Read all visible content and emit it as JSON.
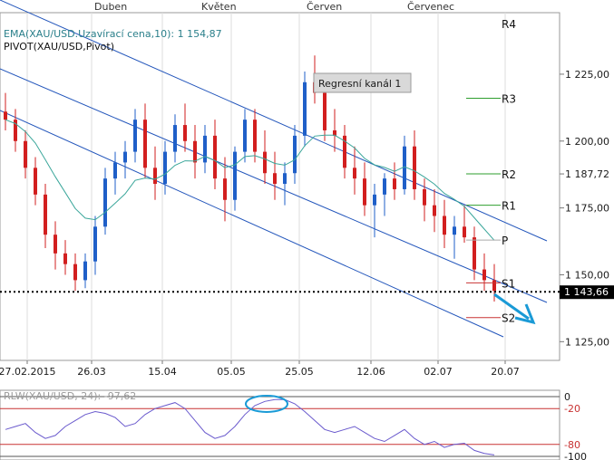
{
  "chart_data": [
    {
      "type": "candlestick",
      "instrument": "XAU/USD",
      "months": [
        "Duben",
        "Květen",
        "Červen",
        "Červenec"
      ],
      "x_ticks": [
        "27.02.2015",
        "26.03",
        "15.04",
        "05.05",
        "25.05",
        "12.06",
        "02.07",
        "20.07"
      ],
      "y_ticks": [
        "1 125,00",
        "1 150,00",
        "1 175,00",
        "1 187,72",
        "1 200,00",
        "1 225,00"
      ],
      "ylim": [
        1118,
        1248
      ],
      "last_price_label": "1 143,66",
      "last_price": 1143.66,
      "ema_legend": "EMA(XAU/USD.Uzavírací cena,10): 1 154,87",
      "pivot_legend": "PIVOT(XAU/USD,Pivot)",
      "channel_label": "Regresní kanál 1",
      "pivot_levels": [
        {
          "name": "R4",
          "value": 1244
        },
        {
          "name": "R3",
          "value": 1216
        },
        {
          "name": "R2",
          "value": 1187.72
        },
        {
          "name": "R1",
          "value": 1176
        },
        {
          "name": "P",
          "value": 1163
        },
        {
          "name": "S1",
          "value": 1147
        },
        {
          "name": "S2",
          "value": 1134
        }
      ],
      "colors": {
        "up": "#1f5fc8",
        "down": "#d21f1f",
        "ema": "#3aa69a",
        "channel": "#2255bb",
        "pivot_upper": "#2e9e2e",
        "pivot_lower": "#c83232",
        "arrow": "#1a9ad6"
      },
      "candles": [
        [
          1211,
          1218,
          1204,
          1208
        ],
        [
          1208,
          1212,
          1196,
          1200
        ],
        [
          1200,
          1204,
          1186,
          1190
        ],
        [
          1190,
          1194,
          1176,
          1180
        ],
        [
          1180,
          1184,
          1160,
          1165
        ],
        [
          1165,
          1170,
          1152,
          1158
        ],
        [
          1158,
          1163,
          1150,
          1154
        ],
        [
          1154,
          1158,
          1144,
          1148
        ],
        [
          1148,
          1158,
          1145,
          1155
        ],
        [
          1155,
          1172,
          1150,
          1168
        ],
        [
          1168,
          1190,
          1165,
          1186
        ],
        [
          1186,
          1196,
          1180,
          1192
        ],
        [
          1192,
          1200,
          1186,
          1196
        ],
        [
          1196,
          1212,
          1192,
          1208
        ],
        [
          1208,
          1214,
          1186,
          1190
        ],
        [
          1190,
          1198,
          1178,
          1184
        ],
        [
          1184,
          1200,
          1180,
          1196
        ],
        [
          1196,
          1210,
          1192,
          1206
        ],
        [
          1206,
          1214,
          1196,
          1200
        ],
        [
          1200,
          1206,
          1186,
          1192
        ],
        [
          1192,
          1206,
          1188,
          1202
        ],
        [
          1202,
          1208,
          1182,
          1186
        ],
        [
          1186,
          1194,
          1170,
          1178
        ],
        [
          1178,
          1198,
          1174,
          1196
        ],
        [
          1196,
          1212,
          1192,
          1208
        ],
        [
          1208,
          1212,
          1192,
          1196
        ],
        [
          1196,
          1204,
          1184,
          1188
        ],
        [
          1188,
          1196,
          1178,
          1184
        ],
        [
          1184,
          1192,
          1176,
          1188
        ],
        [
          1188,
          1206,
          1184,
          1202
        ],
        [
          1202,
          1226,
          1198,
          1222
        ],
        [
          1222,
          1232,
          1214,
          1218
        ],
        [
          1218,
          1224,
          1200,
          1204
        ],
        [
          1204,
          1212,
          1196,
          1202
        ],
        [
          1202,
          1206,
          1186,
          1190
        ],
        [
          1190,
          1198,
          1180,
          1186
        ],
        [
          1186,
          1192,
          1172,
          1176
        ],
        [
          1176,
          1184,
          1164,
          1180
        ],
        [
          1180,
          1188,
          1172,
          1186
        ],
        [
          1186,
          1192,
          1178,
          1182
        ],
        [
          1182,
          1202,
          1180,
          1198
        ],
        [
          1198,
          1204,
          1178,
          1182
        ],
        [
          1182,
          1186,
          1170,
          1176
        ],
        [
          1176,
          1182,
          1166,
          1172
        ],
        [
          1172,
          1178,
          1160,
          1165
        ],
        [
          1165,
          1172,
          1156,
          1168
        ],
        [
          1168,
          1176,
          1162,
          1164
        ],
        [
          1164,
          1168,
          1148,
          1152
        ],
        [
          1152,
          1158,
          1144,
          1148
        ],
        [
          1148,
          1154,
          1140,
          1144
        ]
      ]
    },
    {
      "type": "line",
      "legend": "RLW(XAU/USD, 24): -97,62",
      "ylim": [
        -100,
        0
      ],
      "y_ticks": [
        "0",
        "-20",
        "-80",
        "-100"
      ],
      "levels": [
        -20,
        -80
      ],
      "values": [
        -55,
        -50,
        -45,
        -60,
        -70,
        -65,
        -50,
        -40,
        -30,
        -25,
        -28,
        -35,
        -50,
        -45,
        -30,
        -20,
        -15,
        -10,
        -20,
        -40,
        -60,
        -70,
        -65,
        -50,
        -30,
        -15,
        -8,
        -5,
        -5,
        -12,
        -25,
        -40,
        -55,
        -60,
        -55,
        -50,
        -60,
        -70,
        -75,
        -65,
        -55,
        -70,
        -80,
        -75,
        -85,
        -80,
        -78,
        -90,
        -95,
        -97.62
      ]
    }
  ]
}
